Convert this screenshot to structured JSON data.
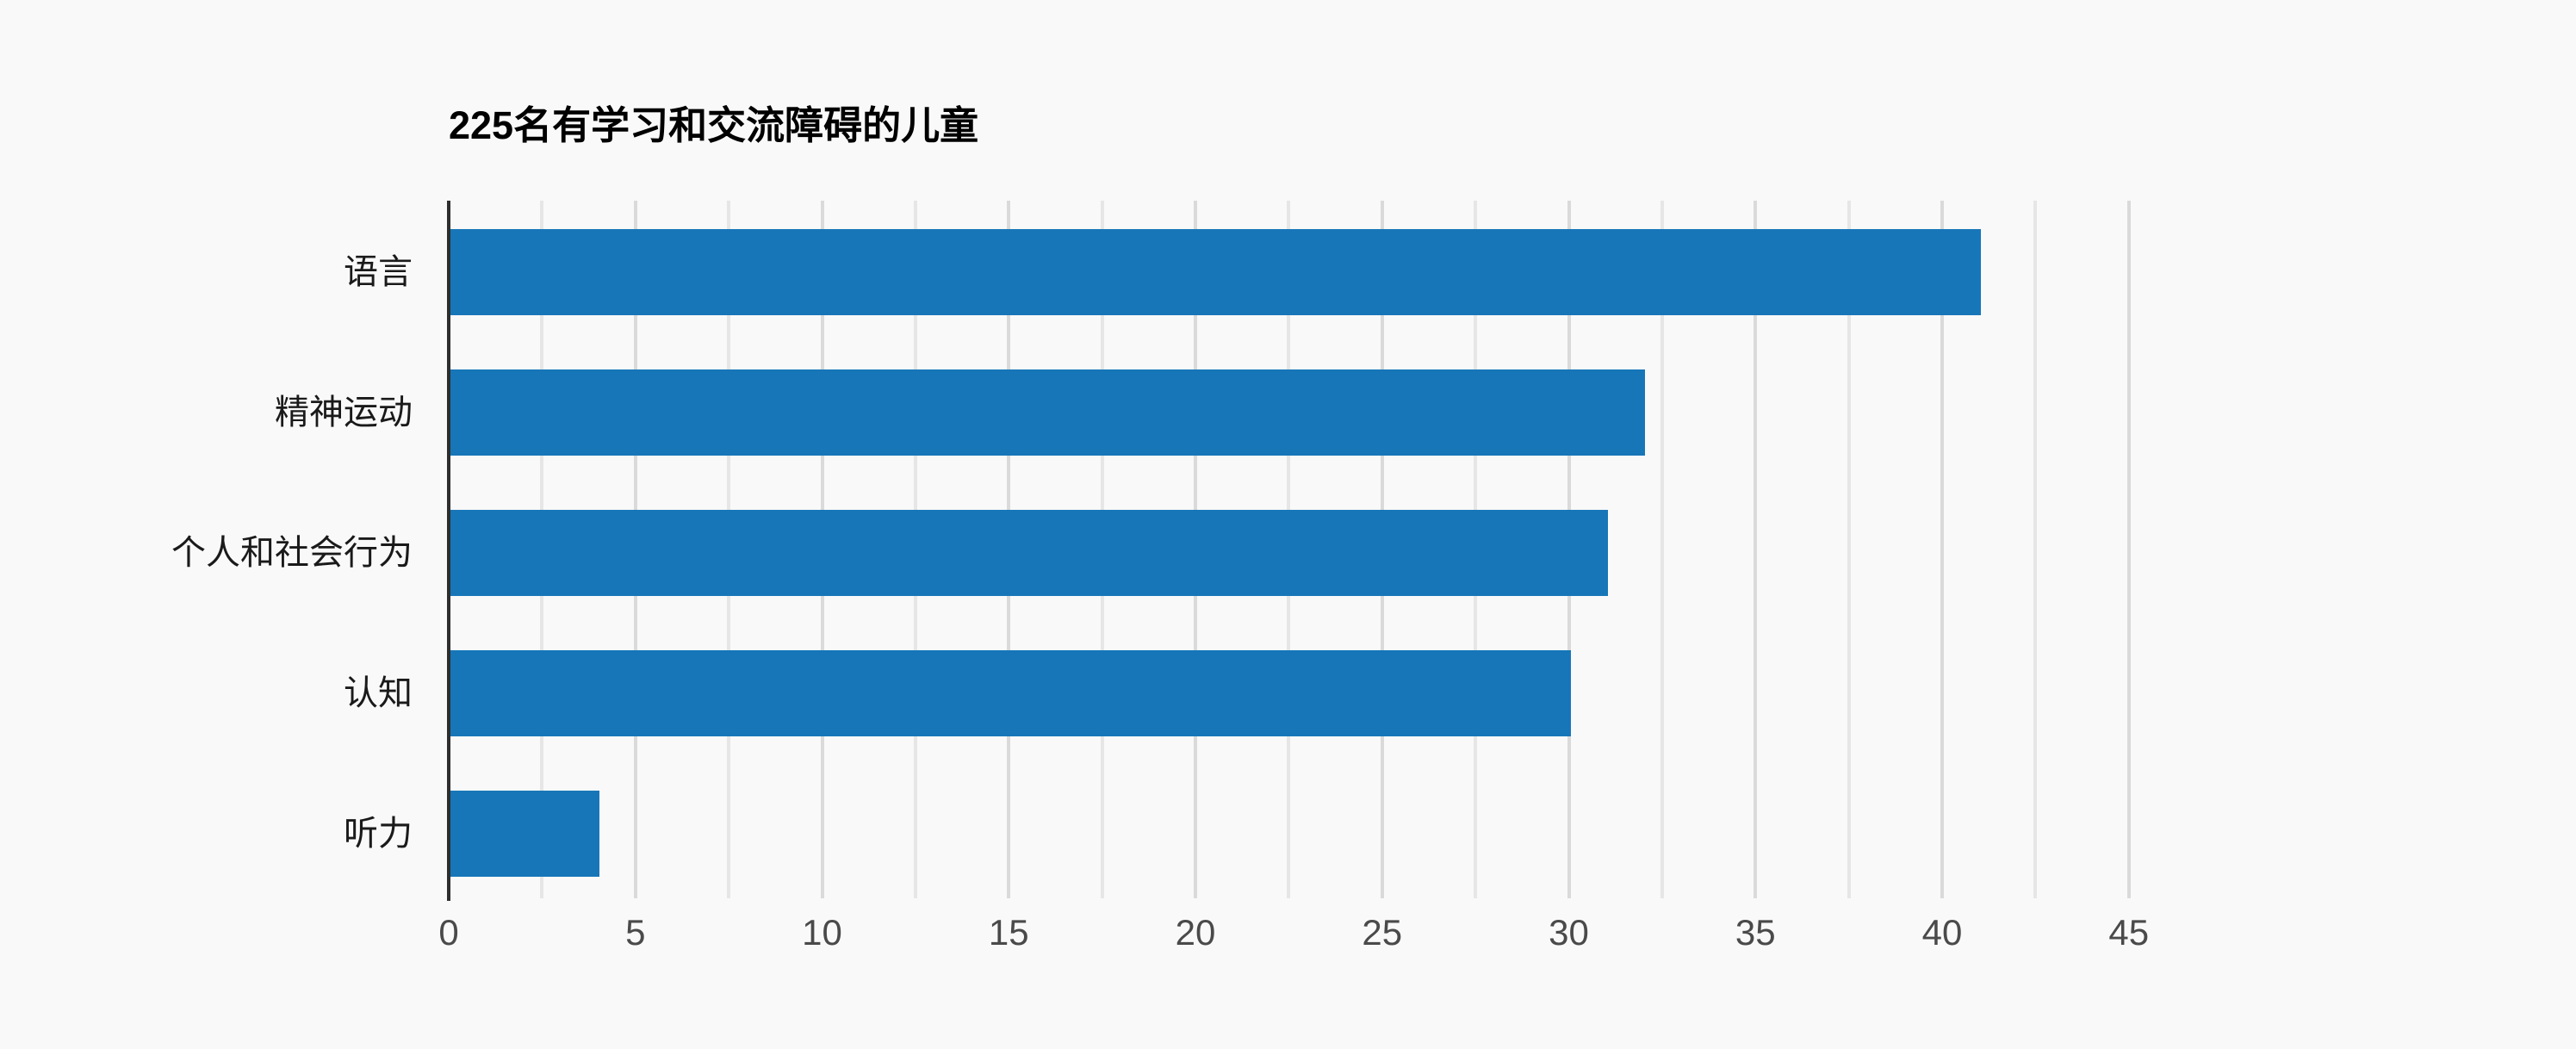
{
  "chart_data": {
    "type": "bar",
    "orientation": "horizontal",
    "title": "225名有学习和交流障碍的儿童",
    "categories": [
      "语言",
      "精神运动",
      "个人和社会行为",
      "认知",
      "听力"
    ],
    "values": [
      41,
      32,
      31,
      30,
      4
    ],
    "xlabel": "",
    "ylabel": "",
    "xlim": [
      0,
      47.5
    ],
    "x_ticks": [
      0,
      5,
      10,
      15,
      20,
      25,
      30,
      35,
      40,
      45
    ],
    "x_minor_grid_step": 2.5,
    "grid": "vertical-only",
    "legend": false
  },
  "colors": {
    "background": "#f9f9f9",
    "bar": "#1776b8",
    "axis_line": "#2e2e2e",
    "grid_major": "#dadada",
    "grid_minor": "#e6e6e6",
    "title_text": "#000000",
    "category_text": "#1a1a1a",
    "tick_text": "#4a4a4a"
  }
}
